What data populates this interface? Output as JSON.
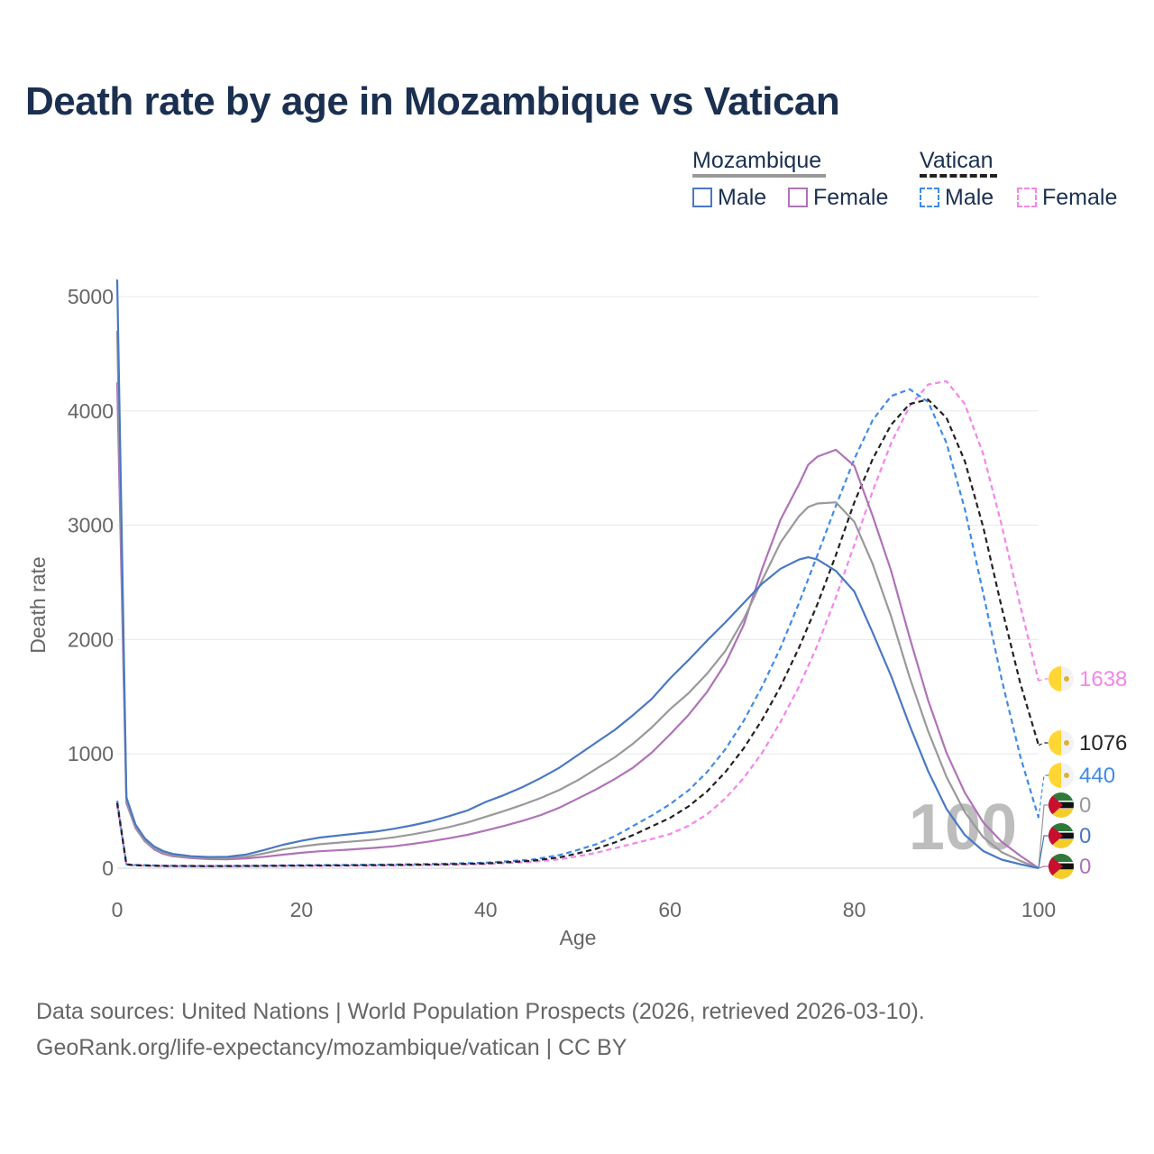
{
  "title": "Death rate by age in Mozambique vs Vatican",
  "legend": {
    "groups": [
      {
        "name": "Mozambique",
        "items": [
          "Male",
          "Female"
        ]
      },
      {
        "name": "Vatican",
        "items": [
          "Male",
          "Female"
        ]
      }
    ]
  },
  "colors": {
    "moz_male": "#4a78c2",
    "moz_female": "#b072b8",
    "moz_total": "#999999",
    "vat_male": "#3f8be6",
    "vat_female": "#f585e8",
    "vat_total": "#222222"
  },
  "watermark": "100",
  "end_labels": [
    {
      "series": "vat_female",
      "value": "1638",
      "flag": "vatican-flag-icon"
    },
    {
      "series": "vat_total",
      "value": "1076",
      "flag": "vatican-flag-icon"
    },
    {
      "series": "vat_male",
      "value": "440",
      "flag": "vatican-flag-icon"
    },
    {
      "series": "moz_total",
      "value": "0",
      "flag": "mozambique-flag-icon"
    },
    {
      "series": "moz_male",
      "value": "0",
      "flag": "mozambique-flag-icon"
    },
    {
      "series": "moz_female",
      "value": "0",
      "flag": "mozambique-flag-icon"
    }
  ],
  "footer": {
    "line1": "Data sources: United Nations | World Population Prospects (2026, retrieved 2026-03-10).",
    "line2": "GeoRank.org/life-expectancy/mozambique/vatican | CC BY"
  },
  "chart_data": {
    "type": "line",
    "title": "Death rate by age in Mozambique vs Vatican",
    "xlabel": "Age",
    "ylabel": "Death rate",
    "xlim": [
      0,
      100
    ],
    "ylim": [
      0,
      5000
    ],
    "xticks": [
      0,
      20,
      40,
      60,
      80,
      100
    ],
    "yticks": [
      0,
      1000,
      2000,
      3000,
      4000,
      5000
    ],
    "grid": true,
    "series": [
      {
        "key": "moz_male",
        "name": "Mozambique Male",
        "style": "solid",
        "points": [
          [
            0,
            5150
          ],
          [
            1,
            620
          ],
          [
            2,
            380
          ],
          [
            3,
            260
          ],
          [
            4,
            190
          ],
          [
            5,
            150
          ],
          [
            6,
            125
          ],
          [
            8,
            105
          ],
          [
            10,
            98
          ],
          [
            12,
            100
          ],
          [
            14,
            120
          ],
          [
            16,
            160
          ],
          [
            18,
            205
          ],
          [
            20,
            240
          ],
          [
            22,
            268
          ],
          [
            25,
            295
          ],
          [
            28,
            320
          ],
          [
            30,
            345
          ],
          [
            32,
            375
          ],
          [
            34,
            410
          ],
          [
            36,
            455
          ],
          [
            38,
            505
          ],
          [
            40,
            580
          ],
          [
            42,
            640
          ],
          [
            44,
            710
          ],
          [
            46,
            790
          ],
          [
            48,
            880
          ],
          [
            50,
            990
          ],
          [
            52,
            1100
          ],
          [
            54,
            1210
          ],
          [
            56,
            1340
          ],
          [
            58,
            1480
          ],
          [
            60,
            1660
          ],
          [
            62,
            1820
          ],
          [
            64,
            1990
          ],
          [
            66,
            2150
          ],
          [
            68,
            2320
          ],
          [
            70,
            2490
          ],
          [
            72,
            2620
          ],
          [
            74,
            2700
          ],
          [
            75,
            2720
          ],
          [
            76,
            2700
          ],
          [
            78,
            2600
          ],
          [
            80,
            2420
          ],
          [
            82,
            2060
          ],
          [
            84,
            1680
          ],
          [
            86,
            1250
          ],
          [
            88,
            850
          ],
          [
            90,
            520
          ],
          [
            92,
            290
          ],
          [
            94,
            150
          ],
          [
            96,
            75
          ],
          [
            98,
            35
          ],
          [
            100,
            0
          ]
        ]
      },
      {
        "key": "moz_total",
        "name": "Mozambique Total",
        "style": "solid",
        "points": [
          [
            0,
            4700
          ],
          [
            1,
            590
          ],
          [
            2,
            360
          ],
          [
            3,
            245
          ],
          [
            4,
            175
          ],
          [
            5,
            135
          ],
          [
            6,
            112
          ],
          [
            8,
            95
          ],
          [
            10,
            88
          ],
          [
            12,
            88
          ],
          [
            14,
            100
          ],
          [
            16,
            130
          ],
          [
            18,
            165
          ],
          [
            20,
            190
          ],
          [
            22,
            210
          ],
          [
            25,
            230
          ],
          [
            28,
            250
          ],
          [
            30,
            270
          ],
          [
            32,
            295
          ],
          [
            34,
            325
          ],
          [
            36,
            360
          ],
          [
            38,
            400
          ],
          [
            40,
            450
          ],
          [
            42,
            500
          ],
          [
            44,
            555
          ],
          [
            46,
            615
          ],
          [
            48,
            685
          ],
          [
            50,
            770
          ],
          [
            52,
            870
          ],
          [
            54,
            970
          ],
          [
            56,
            1090
          ],
          [
            58,
            1230
          ],
          [
            60,
            1390
          ],
          [
            62,
            1530
          ],
          [
            64,
            1700
          ],
          [
            66,
            1900
          ],
          [
            68,
            2180
          ],
          [
            70,
            2520
          ],
          [
            72,
            2850
          ],
          [
            74,
            3080
          ],
          [
            75,
            3160
          ],
          [
            76,
            3190
          ],
          [
            78,
            3200
          ],
          [
            80,
            3030
          ],
          [
            82,
            2660
          ],
          [
            84,
            2200
          ],
          [
            86,
            1670
          ],
          [
            88,
            1200
          ],
          [
            90,
            800
          ],
          [
            92,
            490
          ],
          [
            94,
            270
          ],
          [
            96,
            140
          ],
          [
            98,
            65
          ],
          [
            100,
            0
          ]
        ]
      },
      {
        "key": "moz_female",
        "name": "Mozambique Female",
        "style": "solid",
        "points": [
          [
            0,
            4250
          ],
          [
            1,
            570
          ],
          [
            2,
            350
          ],
          [
            3,
            235
          ],
          [
            4,
            165
          ],
          [
            5,
            125
          ],
          [
            6,
            105
          ],
          [
            8,
            88
          ],
          [
            10,
            80
          ],
          [
            12,
            78
          ],
          [
            14,
            85
          ],
          [
            16,
            100
          ],
          [
            18,
            118
          ],
          [
            20,
            135
          ],
          [
            22,
            148
          ],
          [
            25,
            162
          ],
          [
            28,
            178
          ],
          [
            30,
            192
          ],
          [
            32,
            212
          ],
          [
            34,
            235
          ],
          [
            36,
            262
          ],
          [
            38,
            292
          ],
          [
            40,
            330
          ],
          [
            42,
            370
          ],
          [
            44,
            415
          ],
          [
            46,
            465
          ],
          [
            48,
            530
          ],
          [
            50,
            610
          ],
          [
            52,
            690
          ],
          [
            54,
            780
          ],
          [
            56,
            880
          ],
          [
            58,
            1010
          ],
          [
            60,
            1170
          ],
          [
            62,
            1340
          ],
          [
            64,
            1540
          ],
          [
            66,
            1790
          ],
          [
            68,
            2130
          ],
          [
            70,
            2620
          ],
          [
            72,
            3050
          ],
          [
            74,
            3360
          ],
          [
            75,
            3530
          ],
          [
            76,
            3600
          ],
          [
            78,
            3660
          ],
          [
            80,
            3520
          ],
          [
            82,
            3080
          ],
          [
            84,
            2600
          ],
          [
            86,
            2020
          ],
          [
            88,
            1470
          ],
          [
            90,
            1010
          ],
          [
            92,
            660
          ],
          [
            94,
            400
          ],
          [
            96,
            230
          ],
          [
            98,
            110
          ],
          [
            100,
            0
          ]
        ]
      },
      {
        "key": "vat_male",
        "name": "Vatican Male",
        "style": "dashed",
        "points": [
          [
            0,
            590
          ],
          [
            1,
            35
          ],
          [
            2,
            28
          ],
          [
            5,
            22
          ],
          [
            10,
            20
          ],
          [
            15,
            22
          ],
          [
            20,
            26
          ],
          [
            25,
            28
          ],
          [
            30,
            32
          ],
          [
            35,
            38
          ],
          [
            40,
            48
          ],
          [
            45,
            75
          ],
          [
            48,
            115
          ],
          [
            50,
            160
          ],
          [
            52,
            210
          ],
          [
            54,
            280
          ],
          [
            56,
            370
          ],
          [
            58,
            460
          ],
          [
            60,
            560
          ],
          [
            62,
            680
          ],
          [
            64,
            840
          ],
          [
            66,
            1040
          ],
          [
            68,
            1290
          ],
          [
            70,
            1590
          ],
          [
            72,
            1930
          ],
          [
            74,
            2320
          ],
          [
            76,
            2740
          ],
          [
            78,
            3170
          ],
          [
            80,
            3580
          ],
          [
            82,
            3920
          ],
          [
            84,
            4130
          ],
          [
            86,
            4190
          ],
          [
            88,
            4080
          ],
          [
            90,
            3720
          ],
          [
            92,
            3140
          ],
          [
            94,
            2400
          ],
          [
            96,
            1650
          ],
          [
            98,
            980
          ],
          [
            100,
            440
          ]
        ]
      },
      {
        "key": "vat_total",
        "name": "Vatican Total",
        "style": "dashed",
        "points": [
          [
            0,
            570
          ],
          [
            1,
            32
          ],
          [
            2,
            26
          ],
          [
            5,
            20
          ],
          [
            10,
            18
          ],
          [
            15,
            20
          ],
          [
            20,
            23
          ],
          [
            25,
            25
          ],
          [
            30,
            28
          ],
          [
            35,
            33
          ],
          [
            40,
            42
          ],
          [
            45,
            65
          ],
          [
            48,
            95
          ],
          [
            50,
            130
          ],
          [
            52,
            170
          ],
          [
            54,
            225
          ],
          [
            56,
            290
          ],
          [
            58,
            365
          ],
          [
            60,
            440
          ],
          [
            62,
            540
          ],
          [
            64,
            670
          ],
          [
            66,
            840
          ],
          [
            68,
            1050
          ],
          [
            70,
            1300
          ],
          [
            72,
            1590
          ],
          [
            74,
            1930
          ],
          [
            76,
            2310
          ],
          [
            78,
            2740
          ],
          [
            80,
            3200
          ],
          [
            82,
            3580
          ],
          [
            84,
            3880
          ],
          [
            86,
            4060
          ],
          [
            88,
            4100
          ],
          [
            90,
            3940
          ],
          [
            92,
            3560
          ],
          [
            94,
            2980
          ],
          [
            96,
            2280
          ],
          [
            98,
            1620
          ],
          [
            100,
            1076
          ]
        ]
      },
      {
        "key": "vat_female",
        "name": "Vatican Female",
        "style": "dashed",
        "points": [
          [
            0,
            550
          ],
          [
            1,
            30
          ],
          [
            2,
            24
          ],
          [
            5,
            18
          ],
          [
            10,
            16
          ],
          [
            15,
            18
          ],
          [
            20,
            20
          ],
          [
            25,
            22
          ],
          [
            30,
            24
          ],
          [
            35,
            28
          ],
          [
            40,
            36
          ],
          [
            45,
            55
          ],
          [
            48,
            78
          ],
          [
            50,
            105
          ],
          [
            52,
            135
          ],
          [
            54,
            175
          ],
          [
            56,
            215
          ],
          [
            58,
            255
          ],
          [
            60,
            300
          ],
          [
            62,
            370
          ],
          [
            64,
            470
          ],
          [
            66,
            610
          ],
          [
            68,
            790
          ],
          [
            70,
            1010
          ],
          [
            72,
            1280
          ],
          [
            74,
            1590
          ],
          [
            76,
            1950
          ],
          [
            78,
            2370
          ],
          [
            80,
            2830
          ],
          [
            82,
            3300
          ],
          [
            84,
            3720
          ],
          [
            86,
            4040
          ],
          [
            88,
            4230
          ],
          [
            90,
            4260
          ],
          [
            92,
            4060
          ],
          [
            94,
            3620
          ],
          [
            96,
            3000
          ],
          [
            98,
            2300
          ],
          [
            100,
            1638
          ]
        ]
      }
    ]
  }
}
